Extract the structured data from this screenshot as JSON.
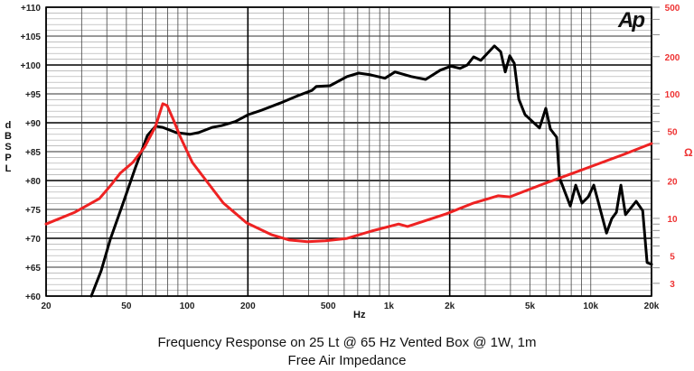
{
  "chart_data": {
    "type": "line",
    "title": "Frequency Response on 25 Lt @ 65 Hz Vented Box @ 1W, 1m",
    "subtitle": "Free Air Impedance",
    "xlabel": "Hz",
    "ylabel": "dB SPL",
    "ylabel_letters": [
      "d",
      "B",
      "S",
      "P",
      "L"
    ],
    "y2label": "Ω",
    "logo": "Ap",
    "xscale": "log",
    "xlim": [
      20,
      20000
    ],
    "ylim": [
      60,
      110
    ],
    "y2scale": "log",
    "y2lim": [
      2.37,
      500
    ],
    "grid": true,
    "x_ticks": [
      {
        "v": 20,
        "label": "20"
      },
      {
        "v": 50,
        "label": "50"
      },
      {
        "v": 100,
        "label": "100"
      },
      {
        "v": 200,
        "label": "200"
      },
      {
        "v": 500,
        "label": "500"
      },
      {
        "v": 1000,
        "label": "1k"
      },
      {
        "v": 2000,
        "label": "2k"
      },
      {
        "v": 5000,
        "label": "5k"
      },
      {
        "v": 10000,
        "label": "10k"
      },
      {
        "v": 20000,
        "label": "20k"
      }
    ],
    "y_ticks": [
      {
        "v": 110,
        "label": "+110"
      },
      {
        "v": 105,
        "label": "+105"
      },
      {
        "v": 100,
        "label": "+100"
      },
      {
        "v": 95,
        "label": "+95"
      },
      {
        "v": 90,
        "label": "+90"
      },
      {
        "v": 85,
        "label": "+85"
      },
      {
        "v": 80,
        "label": "+80"
      },
      {
        "v": 75,
        "label": "+75"
      },
      {
        "v": 70,
        "label": "+70"
      },
      {
        "v": 65,
        "label": "+65"
      },
      {
        "v": 60,
        "label": "+60"
      }
    ],
    "y2_ticks": [
      {
        "v": 500,
        "label": "500"
      },
      {
        "v": 200,
        "label": "200"
      },
      {
        "v": 100,
        "label": "100"
      },
      {
        "v": 50,
        "label": "50"
      },
      {
        "v": 20,
        "label": "20"
      },
      {
        "v": 10,
        "label": "10"
      },
      {
        "v": 5,
        "label": "5"
      },
      {
        "v": 3,
        "label": "3"
      }
    ],
    "series": [
      {
        "name": "SPL",
        "axis": "left",
        "color": "#000000",
        "x": [
          33.5,
          37.5,
          41.6,
          47.6,
          55.5,
          63.5,
          69.7,
          75.7,
          88.3,
          103,
          114,
          133,
          148,
          173,
          201,
          235,
          289,
          355,
          415,
          437,
          510,
          620,
          708,
          811,
          955,
          1071,
          1289,
          1520,
          1794,
          2028,
          2250,
          2444,
          2626,
          2852,
          3328,
          3578,
          3767,
          3966,
          4178,
          4396,
          4721,
          5572,
          5985,
          6310,
          6778,
          6998,
          7912,
          8420,
          9052,
          9730,
          10352,
          11968,
          12706,
          13398,
          14094,
          14860,
          16790,
          18072,
          19012,
          20000
        ],
        "y": [
          60.0,
          64.4,
          69.8,
          75.6,
          82.3,
          87.8,
          89.4,
          89.2,
          88.3,
          88.0,
          88.3,
          89.2,
          89.5,
          90.2,
          91.4,
          92.2,
          93.4,
          94.7,
          95.6,
          96.3,
          96.4,
          98.0,
          98.6,
          98.3,
          97.7,
          98.8,
          98.0,
          97.5,
          99.1,
          99.8,
          99.4,
          100.0,
          101.4,
          100.8,
          103.3,
          102.3,
          98.8,
          101.6,
          100.3,
          94.1,
          91.4,
          89.1,
          92.5,
          88.9,
          87.5,
          80.5,
          75.6,
          79.2,
          76.1,
          77.2,
          79.2,
          70.9,
          73.4,
          74.5,
          79.2,
          74.1,
          76.4,
          74.8,
          65.8,
          65.5
        ]
      },
      {
        "name": "Impedance",
        "axis": "right",
        "color": "#ee2222",
        "x": [
          20,
          27.8,
          36.7,
          42.0,
          46.6,
          53.8,
          61.5,
          69.7,
          75.7,
          79.6,
          85.6,
          93,
          106,
          127,
          151,
          197,
          261,
          321,
          394,
          484,
          620,
          819,
          1116,
          1236,
          1928,
          2626,
          3468,
          3966,
          5808,
          9634,
          14550,
          20000
        ],
        "y": [
          9.0,
          11.2,
          14.4,
          18.6,
          23.1,
          28.2,
          37.4,
          55.0,
          83.6,
          80.8,
          61.8,
          44.3,
          28.2,
          19.2,
          13.3,
          9.2,
          7.4,
          6.7,
          6.5,
          6.6,
          6.9,
          7.9,
          9.0,
          8.6,
          10.9,
          13.3,
          15.2,
          14.9,
          18.9,
          25.5,
          32.7,
          40.0
        ]
      }
    ]
  }
}
